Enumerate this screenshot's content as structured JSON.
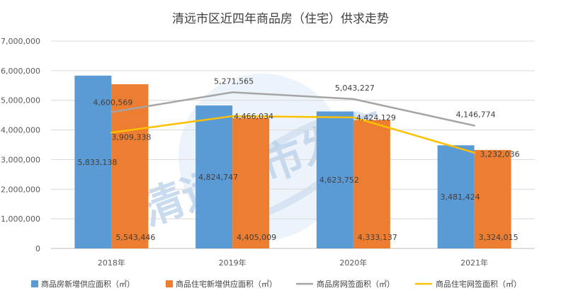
{
  "chart_data": {
    "type": "bar",
    "title": "清远市区近四年商品房（住宅）供求走势",
    "categories": [
      "2018年",
      "2019年",
      "2020年",
      "2021年"
    ],
    "ylim": [
      0,
      7000000
    ],
    "yticks": [
      "0",
      "1,000,000",
      "2,000,000",
      "3,000,000",
      "4,000,000",
      "5,000,000",
      "6,000,000",
      "7,000,000"
    ],
    "grid": true,
    "legend_position": "bottom",
    "watermark": "清远楼市发布",
    "series": [
      {
        "name": "商品房新增供应面积（㎡）",
        "type": "bar",
        "color": "#5B9BD5",
        "values": [
          5833138,
          4824747,
          4623752,
          3481424
        ],
        "labels": [
          "5,833,138",
          "4,824,747",
          "4,623,752",
          "3,481,424"
        ]
      },
      {
        "name": "商品住宅新增供应面积（㎡）",
        "type": "bar",
        "color": "#ED7D31",
        "values": [
          5543446,
          4405009,
          4333137,
          3324015
        ],
        "labels": [
          "5,543,446",
          "4,405,009",
          "4,333,137",
          "3,324,015"
        ]
      },
      {
        "name": "商品房网签面积（㎡）",
        "type": "line",
        "color": "#A5A5A5",
        "values": [
          4600569,
          5271565,
          5043227,
          4146774
        ],
        "labels": [
          "4,600,569",
          "5,271,565",
          "5,043,227",
          "4,146,774"
        ]
      },
      {
        "name": "商品住宅网签面积（㎡）",
        "type": "line",
        "color": "#FFC000",
        "values": [
          3909338,
          4466034,
          4424129,
          3232036
        ],
        "labels": [
          "3,909,338",
          "4,466,034",
          "4,424,129",
          "3,232,036"
        ]
      }
    ]
  }
}
